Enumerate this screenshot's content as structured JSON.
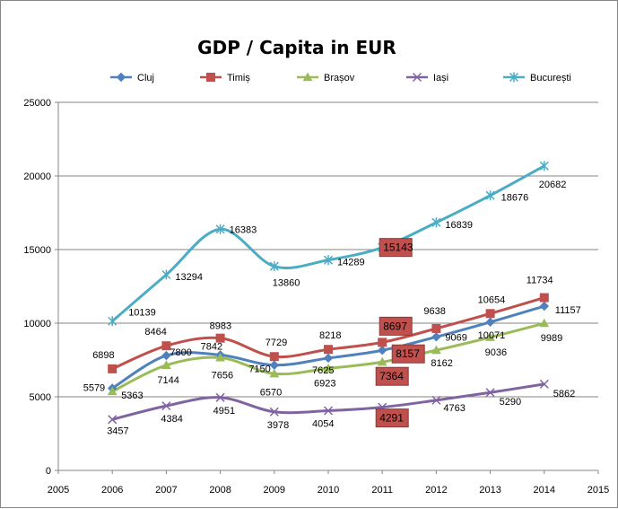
{
  "chart_data": {
    "type": "line",
    "title": "GDP / Capita in EUR",
    "xlabel": "",
    "ylabel": "",
    "x_ticks": [
      2005,
      2006,
      2007,
      2008,
      2009,
      2010,
      2011,
      2012,
      2013,
      2014,
      2015
    ],
    "xlim": [
      2005,
      2015
    ],
    "y_ticks": [
      0,
      5000,
      10000,
      15000,
      20000,
      25000
    ],
    "ylim": [
      0,
      25000
    ],
    "grid": "horizontal",
    "legend": "top",
    "smooth": true,
    "x": [
      2006,
      2007,
      2008,
      2009,
      2010,
      2011,
      2012,
      2013,
      2014
    ],
    "series": [
      {
        "name": "Cluj",
        "color": "#4F81BD",
        "marker": "diamond",
        "values": [
          5579,
          7800,
          7842,
          7150,
          7625,
          8157,
          9069,
          10071,
          11157
        ],
        "labels": [
          "5579",
          "7800",
          "7842",
          "7150",
          "7625",
          "8157",
          "9069",
          "10071",
          "11157"
        ]
      },
      {
        "name": "Timiș",
        "color": "#C0504D",
        "marker": "square",
        "values": [
          6898,
          8464,
          8983,
          7729,
          8218,
          8697,
          9638,
          10654,
          11734
        ],
        "labels": [
          "6898",
          "8464",
          "8983",
          "7729",
          "8218",
          "8697",
          "9638",
          "10654",
          "11734"
        ]
      },
      {
        "name": "Brașov",
        "color": "#9BBB59",
        "marker": "triangle",
        "values": [
          5363,
          7144,
          7656,
          6570,
          6923,
          7364,
          8162,
          9036,
          9989
        ],
        "labels": [
          "5363",
          "7144",
          "7656",
          "6570",
          "6923",
          "7364",
          "8162",
          "9036",
          "9989"
        ]
      },
      {
        "name": "Iași",
        "color": "#8064A2",
        "marker": "x",
        "values": [
          3457,
          4384,
          4951,
          3978,
          4054,
          4291,
          4763,
          5290,
          5862
        ],
        "labels": [
          "3457",
          "4384",
          "4951",
          "3978",
          "4054",
          "4291",
          "4763",
          "5290",
          "5862"
        ]
      },
      {
        "name": "București",
        "color": "#4BACC6",
        "marker": "star",
        "values": [
          10139,
          13294,
          16383,
          13860,
          14289,
          15143,
          16839,
          18676,
          20682
        ],
        "labels": [
          "10139",
          "13294",
          "16383",
          "13860",
          "14289",
          "15143",
          "16839",
          "18676",
          "20682"
        ]
      }
    ],
    "highlighted_labels": [
      {
        "series": "București",
        "x": 2011,
        "color": "#C0504D"
      },
      {
        "series": "Timiș",
        "x": 2011,
        "color": "#C0504D"
      },
      {
        "series": "Cluj",
        "x": 2011,
        "color": "#C0504D"
      },
      {
        "series": "Brașov",
        "x": 2011,
        "color": "#C0504D"
      },
      {
        "series": "Iași",
        "x": 2011,
        "color": "#C0504D"
      }
    ]
  }
}
